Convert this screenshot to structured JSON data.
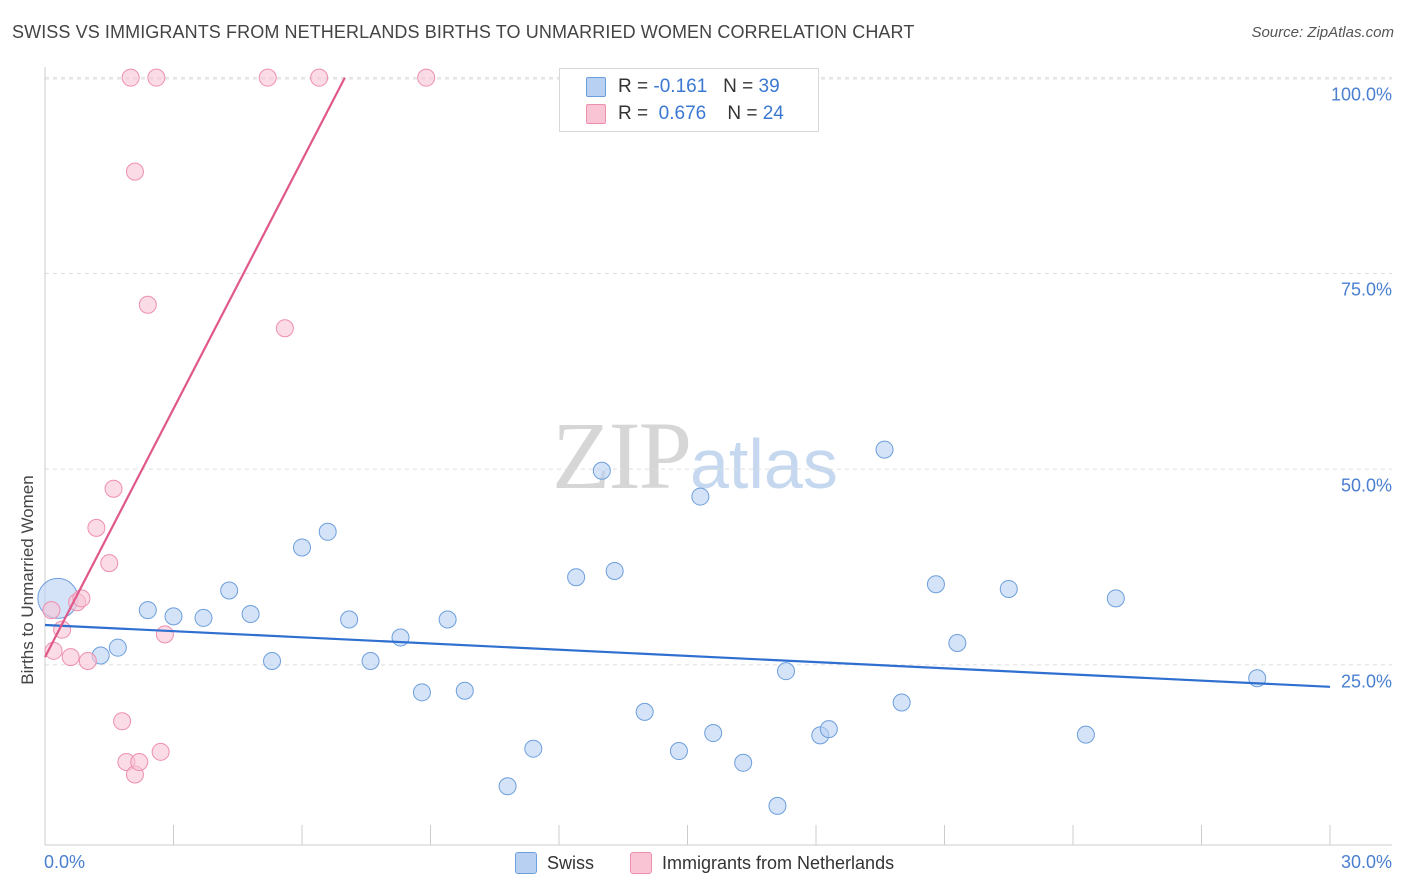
{
  "title": "SWISS VS IMMIGRANTS FROM NETHERLANDS BIRTHS TO UNMARRIED WOMEN CORRELATION CHART",
  "source": "Source: ZipAtlas.com",
  "watermark": {
    "zip": "ZIP",
    "atlas": "atlas"
  },
  "colors": {
    "swiss_fill": "#b8d1f3",
    "swiss_stroke": "#6d9fdc",
    "swiss_line": "#2f6fcf",
    "neth_fill": "#f9c5d5",
    "neth_stroke": "#ee8fae",
    "neth_line": "#e0588a",
    "tick_text": "#4a7fd0",
    "grid": "#dddddd"
  },
  "stats": [
    {
      "r_label": "R =",
      "r_value": "-0.161",
      "n_label": "N =",
      "n_value": "39"
    },
    {
      "r_label": "R =",
      "r_value": "0.676",
      "n_label": "N =",
      "n_value": "24"
    }
  ],
  "legend": [
    "Swiss",
    "Immigrants from Netherlands"
  ],
  "chart_data": {
    "type": "scatter",
    "title": "SWISS VS IMMIGRANTS FROM NETHERLANDS BIRTHS TO UNMARRIED WOMEN CORRELATION CHART",
    "xlabel": "",
    "ylabel": "Births to Unmarried Women",
    "xlim": [
      0,
      30
    ],
    "ylim": [
      2,
      102
    ],
    "x_tick_labels": [
      "0.0%",
      "30.0%"
    ],
    "y_ticks": [
      25,
      50,
      75,
      100
    ],
    "y_tick_labels": [
      "25.0%",
      "50.0%",
      "75.0%",
      "100.0%"
    ],
    "grid": true,
    "legend_position": "bottom",
    "series": [
      {
        "name": "Swiss",
        "points": [
          [
            0.3,
            33.5,
            3
          ],
          [
            1.3,
            26.2,
            1
          ],
          [
            1.7,
            27.2,
            1
          ],
          [
            2.4,
            32.0,
            1
          ],
          [
            3.0,
            31.2,
            1
          ],
          [
            3.7,
            31.0,
            1
          ],
          [
            4.3,
            34.5,
            1
          ],
          [
            4.8,
            31.5,
            1
          ],
          [
            5.3,
            25.5,
            1
          ],
          [
            6.0,
            40.0,
            1
          ],
          [
            6.6,
            42.0,
            1
          ],
          [
            7.1,
            30.8,
            1
          ],
          [
            7.6,
            25.5,
            1
          ],
          [
            8.3,
            28.5,
            1
          ],
          [
            8.8,
            21.5,
            1
          ],
          [
            9.4,
            30.8,
            1
          ],
          [
            9.8,
            21.7,
            1
          ],
          [
            10.8,
            9.5,
            1
          ],
          [
            11.4,
            14.3,
            1
          ],
          [
            12.4,
            36.2,
            1
          ],
          [
            13.0,
            49.8,
            1
          ],
          [
            13.3,
            37.0,
            1
          ],
          [
            14.0,
            19.0,
            1
          ],
          [
            14.8,
            14.0,
            1
          ],
          [
            15.3,
            46.5,
            1
          ],
          [
            15.6,
            16.3,
            1
          ],
          [
            16.3,
            12.5,
            1
          ],
          [
            17.1,
            7.0,
            1
          ],
          [
            17.3,
            24.2,
            1
          ],
          [
            18.1,
            16.0,
            1
          ],
          [
            18.3,
            16.8,
            1
          ],
          [
            19.6,
            52.5,
            1
          ],
          [
            20.0,
            20.2,
            1
          ],
          [
            20.8,
            35.3,
            1
          ],
          [
            21.3,
            27.8,
            1
          ],
          [
            22.5,
            34.7,
            1
          ],
          [
            24.3,
            16.1,
            1
          ],
          [
            25.0,
            33.5,
            1
          ],
          [
            28.3,
            23.3,
            1
          ]
        ],
        "trend": {
          "x": [
            0,
            30
          ],
          "y": [
            30.1,
            22.2
          ]
        }
      },
      {
        "name": "Immigrants from Netherlands",
        "points": [
          [
            0.15,
            32.0,
            1
          ],
          [
            0.2,
            26.8,
            1
          ],
          [
            0.4,
            29.5,
            1
          ],
          [
            0.6,
            26.0,
            1
          ],
          [
            0.75,
            33.0,
            1
          ],
          [
            0.85,
            33.5,
            1
          ],
          [
            1.0,
            25.5,
            1
          ],
          [
            1.2,
            42.5,
            1
          ],
          [
            1.5,
            38.0,
            1
          ],
          [
            1.6,
            47.5,
            1
          ],
          [
            1.8,
            17.8,
            1
          ],
          [
            1.9,
            12.6,
            1
          ],
          [
            2.1,
            11.0,
            1
          ],
          [
            2.2,
            12.6,
            1
          ],
          [
            2.7,
            13.9,
            1
          ],
          [
            2.8,
            28.9,
            1
          ],
          [
            2.0,
            100.0,
            1
          ],
          [
            2.1,
            88.0,
            1
          ],
          [
            2.4,
            71.0,
            1
          ],
          [
            2.6,
            100.0,
            1
          ],
          [
            5.2,
            100.0,
            1
          ],
          [
            5.6,
            68.0,
            1
          ],
          [
            6.4,
            100.0,
            1
          ],
          [
            8.9,
            100.0,
            1
          ]
        ],
        "trend": {
          "x": [
            0,
            7.0
          ],
          "y": [
            26.0,
            100.0
          ]
        }
      }
    ]
  }
}
